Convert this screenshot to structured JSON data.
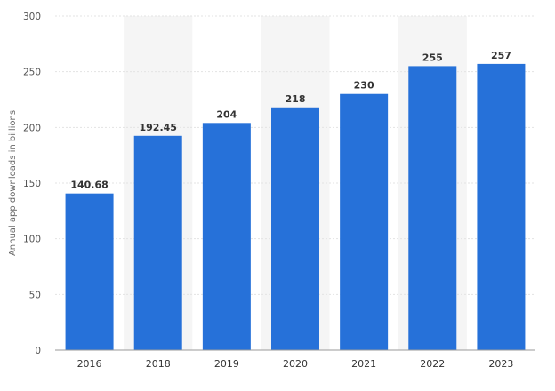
{
  "chart_data": {
    "type": "bar",
    "categories": [
      "2016",
      "2018",
      "2019",
      "2020",
      "2021",
      "2022",
      "2023"
    ],
    "values": [
      140.68,
      192.45,
      204,
      218,
      230,
      255,
      257
    ],
    "value_labels": [
      "140.68",
      "192.45",
      "204",
      "218",
      "230",
      "255",
      "257"
    ],
    "title": "",
    "xlabel": "",
    "ylabel": "Annual app downloads in billions",
    "ylim": [
      0,
      300
    ],
    "yticks": [
      0,
      50,
      100,
      150,
      200,
      250,
      300
    ],
    "grid": true,
    "legend": "none",
    "bar_color": "#2671d9",
    "band_color": "#f5f5f5"
  }
}
